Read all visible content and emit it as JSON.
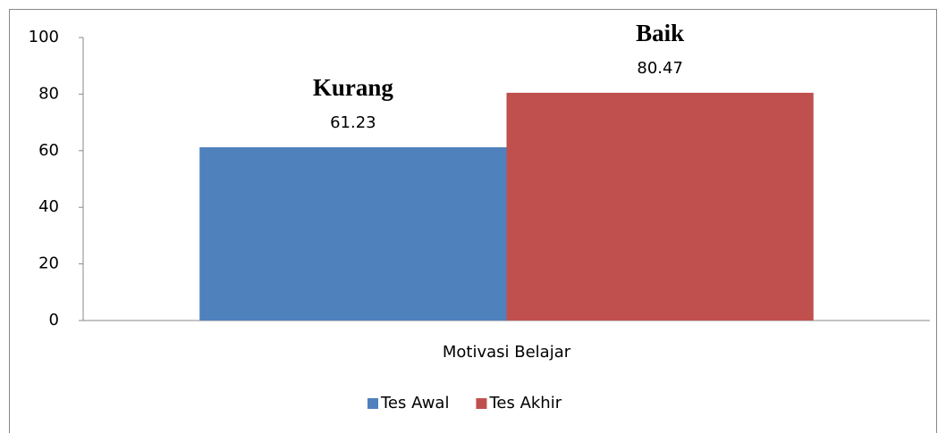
{
  "chart_data": {
    "type": "bar",
    "categories": [
      "Motivasi Belajar"
    ],
    "series": [
      {
        "name": "Tes Awal",
        "color": "#4f81bd",
        "values": [
          61.23
        ],
        "annotation": "Kurang"
      },
      {
        "name": "Tes Akhir",
        "color": "#c0504d",
        "values": [
          80.47
        ],
        "annotation": "Baik"
      }
    ],
    "ylim": [
      0,
      100
    ],
    "yticks": [
      0,
      20,
      40,
      60,
      80,
      100
    ],
    "grid": false,
    "legend": "bottom"
  }
}
